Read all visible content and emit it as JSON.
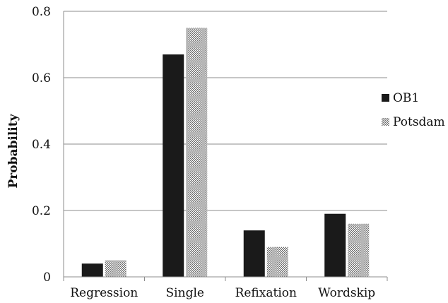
{
  "chart_data": {
    "type": "bar",
    "categories": [
      "Regression",
      "Single",
      "Refixation",
      "Wordskip"
    ],
    "series": [
      {
        "name": "OB1",
        "values": [
          0.04,
          0.67,
          0.14,
          0.19
        ],
        "color": "#1a1a1a",
        "pattern": "solid"
      },
      {
        "name": "Potsdam",
        "values": [
          0.05,
          0.75,
          0.09,
          0.16
        ],
        "color": "#9a9a9a",
        "pattern": "checker"
      }
    ],
    "ylabel": "Probability",
    "ylim": [
      0,
      0.8
    ],
    "yticks": [
      0,
      0.2,
      0.4,
      0.6,
      0.8
    ],
    "ytick_labels": [
      "0",
      "0.2",
      "0.4",
      "0.6",
      "0.8"
    ],
    "grid": "horizontal",
    "legend_position": "right"
  }
}
